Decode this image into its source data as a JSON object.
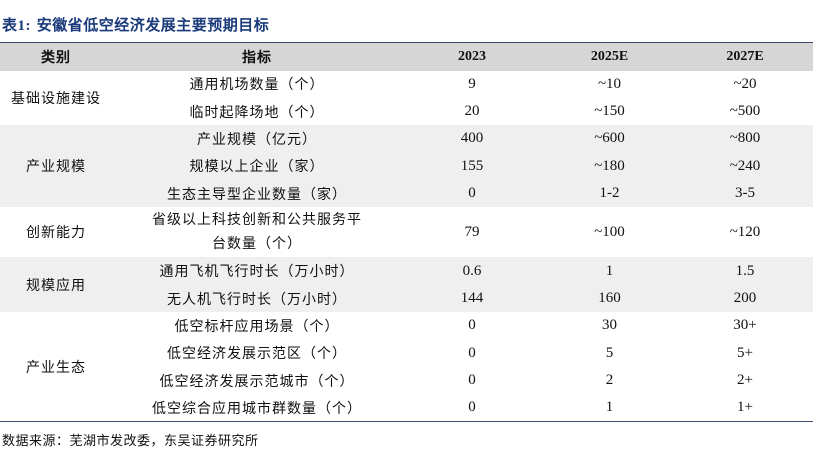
{
  "table_title_prefix": "表1:",
  "table_title": "安徽省低空经济发展主要预期目标",
  "headers": {
    "category": "类别",
    "indicator": "指标",
    "y2023": "2023",
    "y2025": "2025E",
    "y2027": "2027E"
  },
  "groups": [
    {
      "category": "基础设施建设",
      "rows": [
        {
          "indicator": "通用机场数量（个）",
          "v2023": "9",
          "v2025": "~10",
          "v2027": "~20"
        },
        {
          "indicator": "临时起降场地（个）",
          "v2023": "20",
          "v2025": "~150",
          "v2027": "~500"
        }
      ]
    },
    {
      "category": "产业规模",
      "rows": [
        {
          "indicator": "产业规模（亿元）",
          "v2023": "400",
          "v2025": "~600",
          "v2027": "~800"
        },
        {
          "indicator": "规模以上企业（家）",
          "v2023": "155",
          "v2025": "~180",
          "v2027": "~240"
        },
        {
          "indicator": "生态主导型企业数量（家）",
          "v2023": "0",
          "v2025": "1-2",
          "v2027": "3-5"
        }
      ]
    },
    {
      "category": "创新能力",
      "rows": [
        {
          "indicator": "省级以上科技创新和公共服务平台数量（个）",
          "v2023": "79",
          "v2025": "~100",
          "v2027": "~120"
        }
      ]
    },
    {
      "category": "规模应用",
      "rows": [
        {
          "indicator": "通用飞机飞行时长（万小时）",
          "v2023": "0.6",
          "v2025": "1",
          "v2027": "1.5"
        },
        {
          "indicator": "无人机飞行时长（万小时）",
          "v2023": "144",
          "v2025": "160",
          "v2027": "200"
        }
      ]
    },
    {
      "category": "产业生态",
      "rows": [
        {
          "indicator": "低空标杆应用场景（个）",
          "v2023": "0",
          "v2025": "30",
          "v2027": "30+"
        },
        {
          "indicator": "低空经济发展示范区（个）",
          "v2023": "0",
          "v2025": "5",
          "v2027": "5+"
        },
        {
          "indicator": "低空经济发展示范城市（个）",
          "v2023": "0",
          "v2025": "2",
          "v2027": "2+"
        },
        {
          "indicator": "低空综合应用城市群数量（个）",
          "v2023": "0",
          "v2025": "1",
          "v2027": "1+"
        }
      ]
    }
  ],
  "source": "数据来源：芜湖市发改委，东吴证券研究所"
}
